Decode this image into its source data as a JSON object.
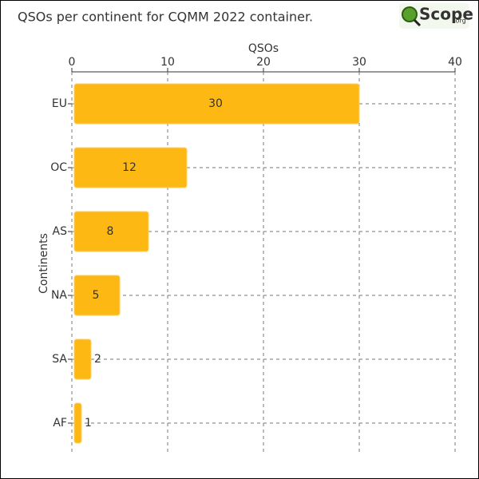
{
  "chart_data": {
    "type": "barh",
    "title": "QSOs per continent for CQMM 2022 container.",
    "logo": {
      "text": "Scope",
      "suffix": ".org"
    },
    "xlabel": "QSOs",
    "ylabel": "Continents",
    "categories": [
      "EU",
      "OC",
      "AS",
      "NA",
      "SA",
      "AF"
    ],
    "values": [
      30,
      12,
      8,
      5,
      2,
      1
    ],
    "color": "#fdb813",
    "xlim": [
      0,
      40
    ],
    "xticks": [
      0,
      10,
      20,
      30,
      40
    ],
    "grid": true
  }
}
